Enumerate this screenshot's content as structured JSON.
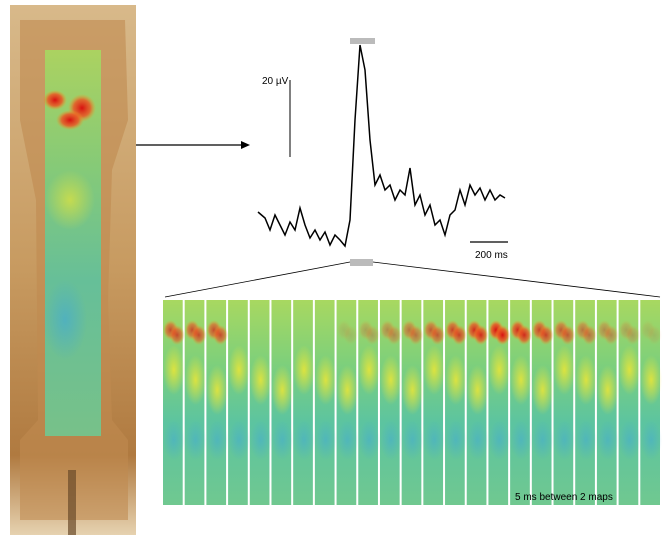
{
  "labels": {
    "voltage_scale": "20 µV",
    "time_scale": "200 ms",
    "map_interval": "5 ms between 2 maps"
  }
}
